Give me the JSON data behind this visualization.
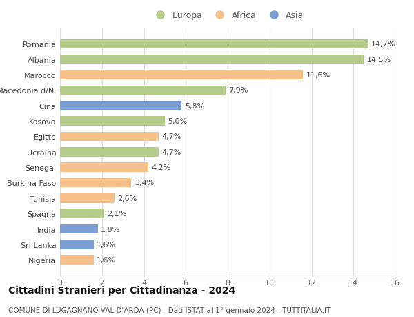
{
  "categories": [
    "Romania",
    "Albania",
    "Marocco",
    "Macedonia d/N.",
    "Cina",
    "Kosovo",
    "Egitto",
    "Ucraina",
    "Senegal",
    "Burkina Faso",
    "Tunisia",
    "Spagna",
    "India",
    "Sri Lanka",
    "Nigeria"
  ],
  "values": [
    14.7,
    14.5,
    11.6,
    7.9,
    5.8,
    5.0,
    4.7,
    4.7,
    4.2,
    3.4,
    2.6,
    2.1,
    1.8,
    1.6,
    1.6
  ],
  "labels": [
    "14,7%",
    "14,5%",
    "11,6%",
    "7,9%",
    "5,8%",
    "5,0%",
    "4,7%",
    "4,7%",
    "4,2%",
    "3,4%",
    "2,6%",
    "2,1%",
    "1,8%",
    "1,6%",
    "1,6%"
  ],
  "continents": [
    "Europa",
    "Europa",
    "Africa",
    "Europa",
    "Asia",
    "Europa",
    "Africa",
    "Europa",
    "Africa",
    "Africa",
    "Africa",
    "Europa",
    "Asia",
    "Asia",
    "Africa"
  ],
  "colors": {
    "Europa": "#b5cb8b",
    "Africa": "#f5c08a",
    "Asia": "#7b9fd4"
  },
  "legend_order": [
    "Europa",
    "Africa",
    "Asia"
  ],
  "xlim": [
    0,
    16
  ],
  "xticks": [
    0,
    2,
    4,
    6,
    8,
    10,
    12,
    14,
    16
  ],
  "title": "Cittadini Stranieri per Cittadinanza - 2024",
  "subtitle": "COMUNE DI LUGAGNANO VAL D'ARDA (PC) - Dati ISTAT al 1° gennaio 2024 - TUTTITALIA.IT",
  "background_color": "#ffffff",
  "grid_color": "#dddddd",
  "bar_height": 0.6,
  "title_fontsize": 10,
  "subtitle_fontsize": 7.5,
  "tick_fontsize": 8,
  "label_fontsize": 8,
  "legend_fontsize": 9
}
